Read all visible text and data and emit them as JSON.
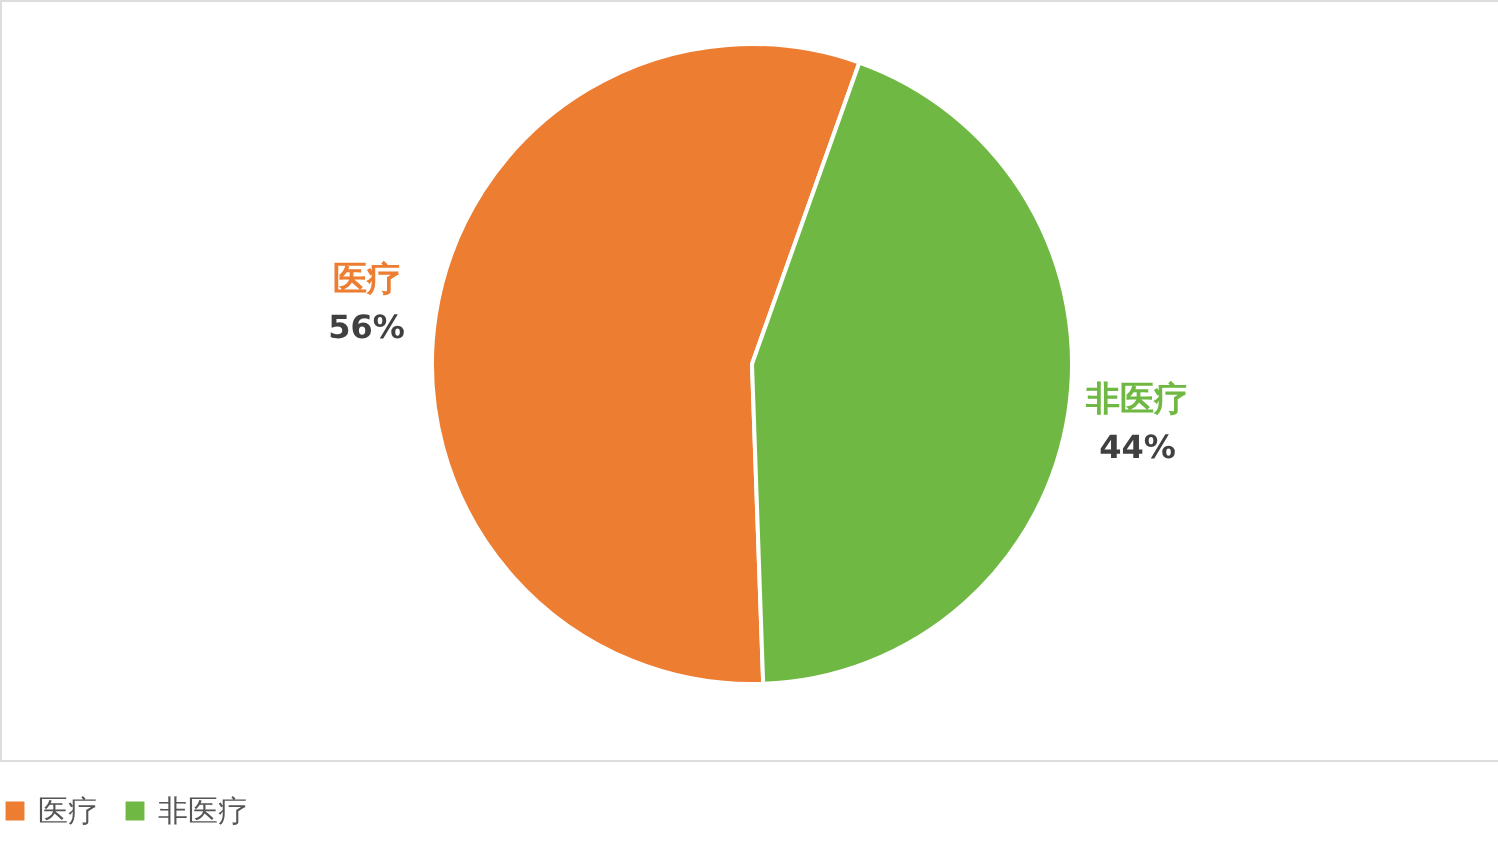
{
  "chart_data": {
    "type": "pie",
    "categories": [
      "医疗",
      "非医疗"
    ],
    "values": [
      56,
      44
    ],
    "colors": [
      "#ed7d31",
      "#70b844"
    ],
    "value_labels": [
      "56%",
      "44%"
    ],
    "legend": "bottom"
  }
}
